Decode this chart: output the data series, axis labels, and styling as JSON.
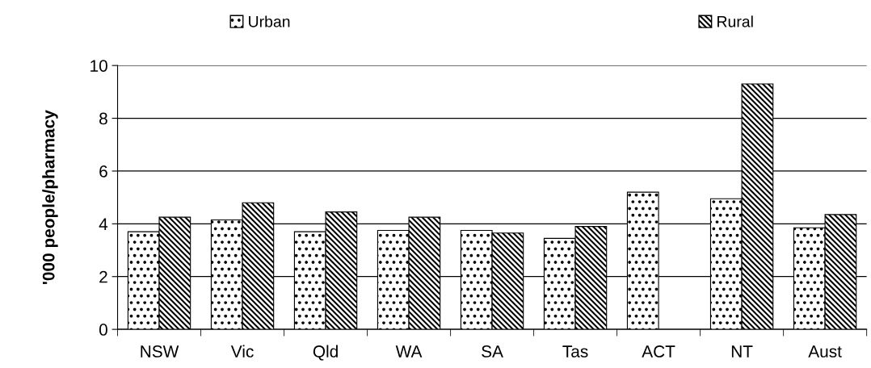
{
  "chart_data": {
    "type": "bar",
    "ylabel": "'000 people/pharmacy",
    "categories": [
      "NSW",
      "Vic",
      "Qld",
      "WA",
      "SA",
      "Tas",
      "ACT",
      "NT",
      "Aust"
    ],
    "series": [
      {
        "name": "Urban",
        "color": "#000000",
        "values": [
          3.7,
          4.15,
          3.7,
          3.75,
          3.75,
          3.45,
          5.2,
          4.95,
          3.85
        ]
      },
      {
        "name": "Rural",
        "color": "#000000",
        "values": [
          4.25,
          4.8,
          4.45,
          4.25,
          3.65,
          3.9,
          null,
          9.3,
          4.35
        ]
      }
    ],
    "ylim": [
      0,
      10
    ],
    "yticks": [
      0,
      2,
      4,
      6,
      8,
      10
    ],
    "grid": "y",
    "legend": "top"
  }
}
